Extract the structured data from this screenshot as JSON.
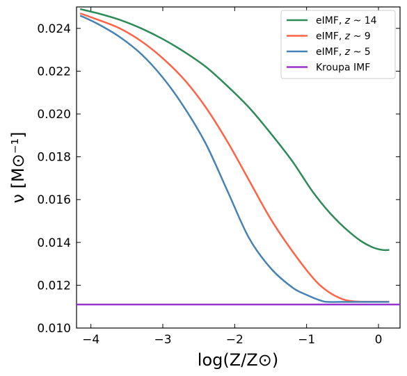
{
  "chart_data": {
    "type": "line",
    "xlabel": "log(Z/Z⊙)",
    "ylabel": "ν [M⊙⁻¹]",
    "xlim": [
      -4.2,
      0.3
    ],
    "ylim": [
      0.01,
      0.025
    ],
    "x_ticks": [
      -4,
      -3,
      -2,
      -1,
      0
    ],
    "x_tick_labels": [
      "−4",
      "−3",
      "−2",
      "−1",
      "0"
    ],
    "y_ticks": [
      0.01,
      0.012,
      0.014,
      0.016,
      0.018,
      0.02,
      0.022,
      0.024
    ],
    "y_tick_labels": [
      "0.010",
      "0.012",
      "0.014",
      "0.016",
      "0.018",
      "0.020",
      "0.022",
      "0.024"
    ],
    "grid": false,
    "legend_position": "top-right",
    "series": [
      {
        "name": "eIMF, z ~ 14",
        "legend_prefix": "eIMF, ",
        "legend_z": "z",
        "legend_suffix": " ~ 14",
        "color": "#2e8b57",
        "x": [
          -4.15,
          -3.9,
          -3.6,
          -3.3,
          -3.0,
          -2.7,
          -2.4,
          -2.1,
          -1.8,
          -1.5,
          -1.2,
          -0.9,
          -0.6,
          -0.3,
          -0.1,
          0.05,
          0.15
        ],
        "y": [
          0.0249,
          0.0247,
          0.0244,
          0.024,
          0.0235,
          0.0229,
          0.0222,
          0.0213,
          0.0203,
          0.0191,
          0.0178,
          0.0163,
          0.0151,
          0.0142,
          0.0138,
          0.01365,
          0.01365
        ]
      },
      {
        "name": "eIMF, z ~ 9",
        "legend_prefix": "eIMF, ",
        "legend_z": "z",
        "legend_suffix": " ~ 9",
        "color": "#ff6347",
        "x": [
          -4.15,
          -3.9,
          -3.6,
          -3.3,
          -3.0,
          -2.7,
          -2.4,
          -2.1,
          -1.8,
          -1.5,
          -1.2,
          -0.9,
          -0.7,
          -0.5,
          -0.35,
          -0.2,
          0.15
        ],
        "y": [
          0.0247,
          0.0244,
          0.024,
          0.0234,
          0.0226,
          0.0216,
          0.0203,
          0.0187,
          0.0169,
          0.0151,
          0.0136,
          0.0123,
          0.0117,
          0.01135,
          0.01125,
          0.01123,
          0.01123
        ]
      },
      {
        "name": "eIMF, z ~ 5",
        "legend_prefix": "eIMF, ",
        "legend_z": "z",
        "legend_suffix": " ~ 5",
        "color": "#4682b4",
        "x": [
          -4.15,
          -3.9,
          -3.6,
          -3.3,
          -3.0,
          -2.7,
          -2.4,
          -2.1,
          -1.8,
          -1.5,
          -1.2,
          -1.0,
          -0.8,
          -0.7,
          -0.5,
          0.15
        ],
        "y": [
          0.0246,
          0.0242,
          0.0236,
          0.0228,
          0.0217,
          0.0203,
          0.0186,
          0.0164,
          0.0142,
          0.0128,
          0.0119,
          0.01155,
          0.01128,
          0.01122,
          0.01122,
          0.01122
        ]
      },
      {
        "name": "Kroupa IMF",
        "legend_prefix": "Kroupa IMF",
        "legend_z": "",
        "legend_suffix": "",
        "color": "#9932cc",
        "x": [
          -4.2,
          0.3
        ],
        "y": [
          0.0111,
          0.0111
        ]
      }
    ]
  }
}
